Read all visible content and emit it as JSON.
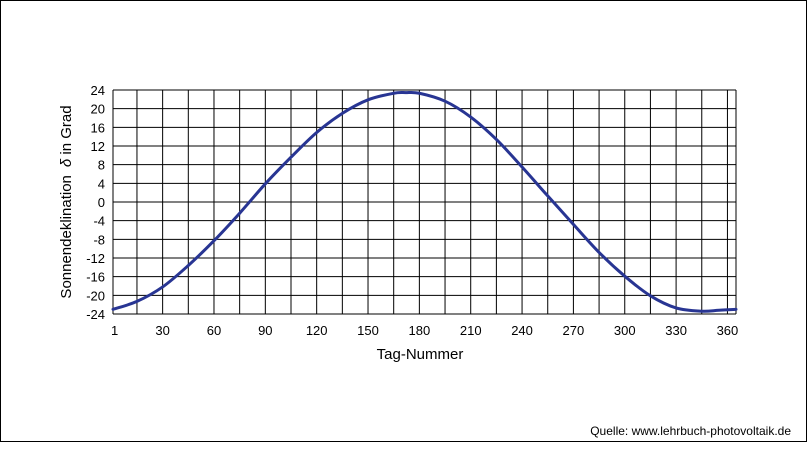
{
  "chart_data": {
    "type": "line",
    "title": "",
    "xlabel": "Tag-Nummer",
    "ylabel_prefix": "Sonnendeklination",
    "ylabel_symbol": "δ",
    "ylabel_suffix": " in Grad",
    "xlim": [
      1,
      365
    ],
    "ylim": [
      -24,
      24
    ],
    "x_ticks": [
      "1",
      "30",
      "60",
      "90",
      "120",
      "150",
      "180",
      "210",
      "240",
      "270",
      "300",
      "330",
      "360"
    ],
    "y_ticks": [
      "24",
      "20",
      "16",
      "12",
      "8",
      "4",
      "0",
      "-4",
      "-8",
      "-12",
      "-16",
      "-20",
      "-24"
    ],
    "grid": true,
    "series": [
      {
        "color": "#283593",
        "x": [
          1,
          15,
          30,
          45,
          60,
          75,
          90,
          105,
          120,
          135,
          150,
          165,
          172,
          180,
          195,
          210,
          225,
          240,
          255,
          270,
          285,
          300,
          315,
          330,
          345,
          355,
          365
        ],
        "y": [
          -23.0,
          -21.3,
          -18.2,
          -13.6,
          -8.3,
          -2.4,
          3.9,
          9.6,
          14.9,
          19.0,
          21.9,
          23.3,
          23.44,
          23.3,
          21.6,
          18.2,
          13.4,
          7.5,
          1.3,
          -4.8,
          -10.8,
          -15.9,
          -20.1,
          -22.7,
          -23.4,
          -23.2,
          -23.0
        ]
      }
    ]
  },
  "source_text": "Quelle: www.lehrbuch-photovoltaik.de"
}
